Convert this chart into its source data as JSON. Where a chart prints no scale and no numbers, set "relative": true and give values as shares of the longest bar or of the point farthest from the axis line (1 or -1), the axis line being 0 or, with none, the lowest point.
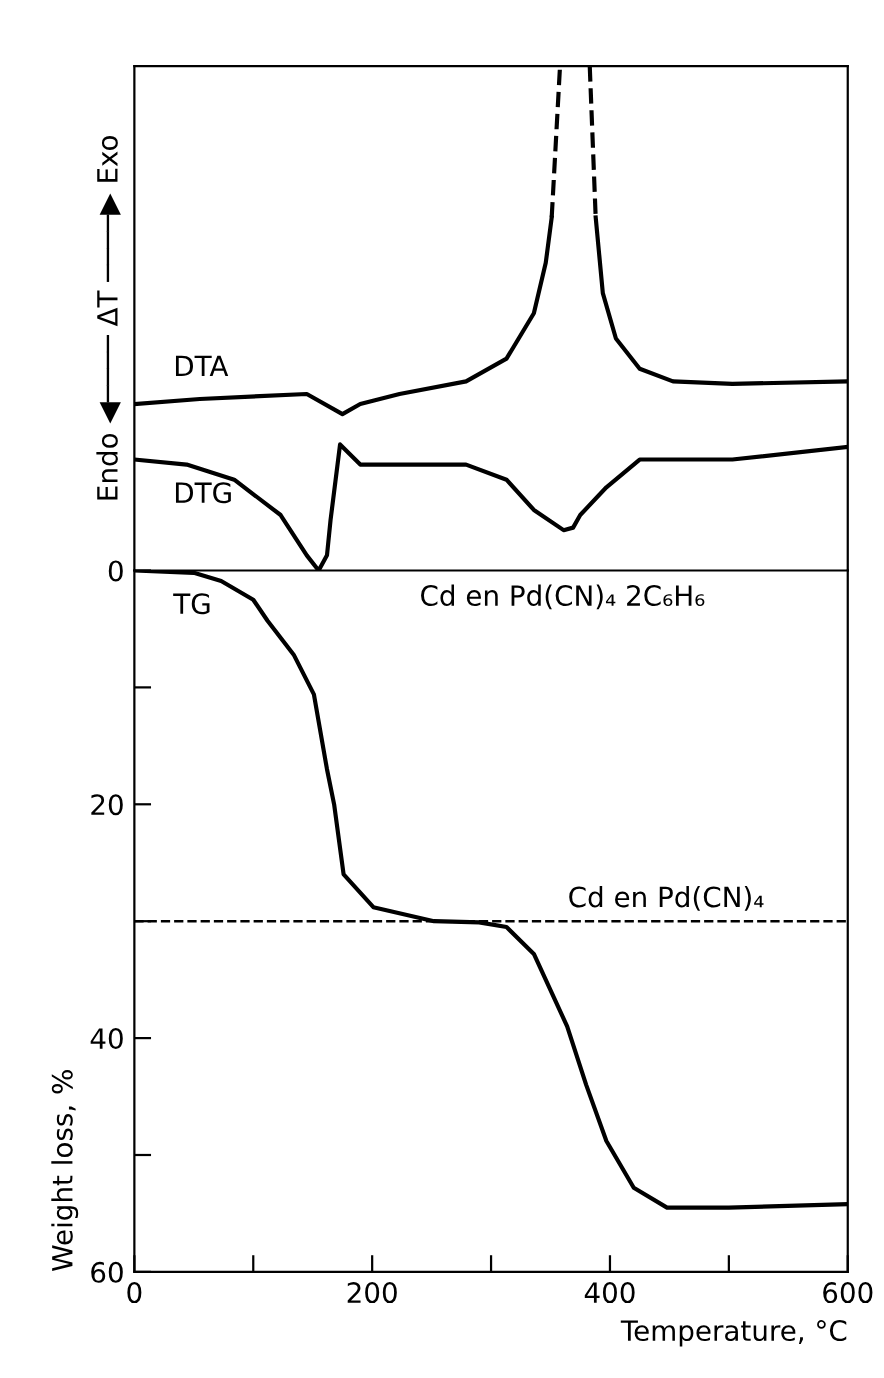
{
  "chart_data": [
    {
      "type": "line",
      "relative": true,
      "ylabel": "Endo ◀──── ΔT ────▶ Exo",
      "xlim": [
        0,
        600
      ],
      "grid": false,
      "legend": false,
      "series": [
        {
          "name": "DTA",
          "color": "#000000",
          "line_style": "solid",
          "x": [
            0,
            55,
            145,
            175,
            190,
            223,
            279,
            313,
            336,
            346,
            351,
            358,
            370,
            383,
            388,
            394,
            405,
            425,
            453,
            503,
            600
          ],
          "values": [
            0.33,
            0.34,
            0.35,
            0.31,
            0.33,
            0.35,
            0.375,
            0.42,
            0.51,
            0.61,
            0.7,
            null,
            null,
            null,
            0.7,
            0.55,
            0.46,
            0.4,
            0.375,
            0.37,
            0.375
          ]
        },
        {
          "color": "#000000",
          "line_style": "dashed",
          "x": [
            351,
            358,
            370,
            383,
            388
          ],
          "values": [
            0.7,
            1.0,
            null,
            1.0,
            0.7
          ]
        },
        {
          "name": "DTG",
          "color": "#000000",
          "line_style": "solid",
          "x": [
            0,
            44,
            84,
            123,
            145,
            155,
            162,
            165,
            173,
            190,
            279,
            313,
            336,
            361,
            369,
            375,
            397,
            425,
            503,
            600
          ],
          "values": [
            0.22,
            0.21,
            0.18,
            0.11,
            0.03,
            0.0,
            0.03,
            0.1,
            0.25,
            0.21,
            0.21,
            0.18,
            0.12,
            0.08,
            0.085,
            0.11,
            0.165,
            0.22,
            0.22,
            0.245
          ]
        }
      ]
    },
    {
      "type": "line",
      "xlabel": "Temperature, °C",
      "ylabel": "Weight loss, %",
      "xlim": [
        0,
        600
      ],
      "ylim": [
        60,
        0
      ],
      "xticks": [
        0,
        {
          "value": 100,
          "label": null
        },
        200,
        {
          "value": 300,
          "label": null
        },
        400,
        {
          "value": 500,
          "label": null
        },
        600
      ],
      "yticks": [
        0,
        {
          "value": 10,
          "label": null
        },
        20,
        {
          "value": 30,
          "label": null
        },
        40,
        {
          "value": 50,
          "label": null
        },
        60
      ],
      "grid": false,
      "legend": false,
      "ref_lines": [
        {
          "axis": "y",
          "value": 30,
          "label": "Cd en Pd(CN)₄",
          "line_style": "dashed",
          "color": "#000000"
        }
      ],
      "annotations": [
        "Cd en Pd(CN)₄ 2C₆H₆"
      ],
      "series": [
        {
          "name": "TG",
          "color": "#000000",
          "line_style": "solid",
          "x": [
            0,
            50,
            73,
            100,
            112,
            134,
            151,
            162,
            168,
            176,
            201,
            252,
            290,
            313,
            336,
            364,
            380,
            397,
            420,
            448,
            500,
            600
          ],
          "values": [
            0,
            0.2,
            0.9,
            2.5,
            4.3,
            7.2,
            10.6,
            17,
            20,
            26,
            28.8,
            30,
            30.1,
            30.5,
            32.8,
            39,
            44,
            48.8,
            52.8,
            54.5,
            54.5,
            54.2
          ]
        }
      ]
    }
  ]
}
